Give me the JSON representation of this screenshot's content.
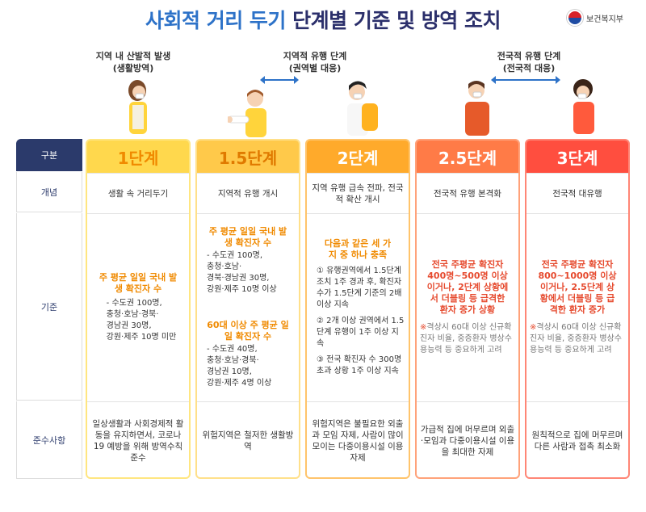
{
  "title_part1": "사회적 거리 두기",
  "title_part2": "단계별 기준 및 방역 조치",
  "org": "보건복지부",
  "stage_labels": {
    "local": {
      "line1": "지역 내 산발적 발생",
      "line2": "(생활방역)"
    },
    "regional": {
      "line1": "지역적 유행 단계",
      "line2": "(권역별 대응)"
    },
    "national": {
      "line1": "전국적 유행 단계",
      "line2": "(전국적 대응)"
    }
  },
  "row_headers": [
    "구분",
    "개념",
    "기준",
    "준수사항"
  ],
  "colors": {
    "level1": "#ffd84d",
    "level15": "#ffc94a",
    "level2": "#ffaa2b",
    "level25": "#ff7b47",
    "level3": "#ff4e3f",
    "navy": "#2b3a6b",
    "blue": "#2d72c8"
  },
  "levels": [
    {
      "name": "1단계",
      "concept": "생활 속 거리두기",
      "criteria_head": "주 평균 일일 국내 발생 확진자 수",
      "criteria_list": [
        "- 수도권 100명,",
        "충청·호남·경북·",
        "경남권 30명,",
        "강원·제주 10명 미만"
      ],
      "rules": "일상생활과 사회경제적 활동을 유지하면서, 코로나19 예방을 위해 방역수칙 준수"
    },
    {
      "name": "1.5단계",
      "concept": "지역적 유행 개시",
      "criteria_head": "주 평균 일일 국내 발생 확진자 수",
      "criteria_list": [
        "- 수도권 100명,",
        "충청·호남·",
        "경북·경남권 30명,",
        "강원·제주 10명 이상"
      ],
      "criteria_head2": "60대 이상 주 평균 일일 확진자 수",
      "criteria_list2": [
        "- 수도권 40명,",
        "충청·호남·경북·",
        "경남권 10명,",
        "강원·제주 4명 이상"
      ],
      "rules": "위험지역은 철저한 생활방역"
    },
    {
      "name": "2단계",
      "concept": "지역 유행 급속 전파, 전국적 확산 개시",
      "criteria_head": "다음과 같은 세 가지 중 하나 충족",
      "criteria_items": [
        "① 유행권역에서 1.5단계 조치 1주 경과 후, 확진자 수가 1.5단계 기준의 2배 이상 지속",
        "② 2개 이상 권역에서 1.5단계 유행이 1주 이상 지속",
        "③ 전국 확진자 수 300명 초과 상황 1주 이상 지속"
      ],
      "rules": "위험지역은 불필요한 외출과 모임 자제, 사람이 많이 모이는 다중이용시설 이용 자제"
    },
    {
      "name": "2.5단계",
      "concept": "전국적 유행 본격화",
      "criteria_head": "전국 주평균 확진자 400명~500명 이상이거나, 2단계 상황에서 더블링 등 급격한 환자 증가 상황",
      "note_mark": "※",
      "note": "격상시 60대 이상 신규확진자 비율, 중증환자 병상수용능력 등 중요하게 고려",
      "rules": "가급적 집에 머무르며 외출·모임과 다중이용시설 이용을 최대한 자제"
    },
    {
      "name": "3단계",
      "concept": "전국적 대유행",
      "criteria_head": "전국 주평균 확진자 800~1000명 이상이거나, 2.5단계 상황에서 더블링 등 급격한 환자 증가",
      "note_mark": "※",
      "note": "격상시 60대 이상 신규확진자 비율, 중증환자 병상수용능력 등 중요하게 고려",
      "rules": "원칙적으로 집에 머무르며 다른 사람과 접촉 최소화"
    }
  ]
}
